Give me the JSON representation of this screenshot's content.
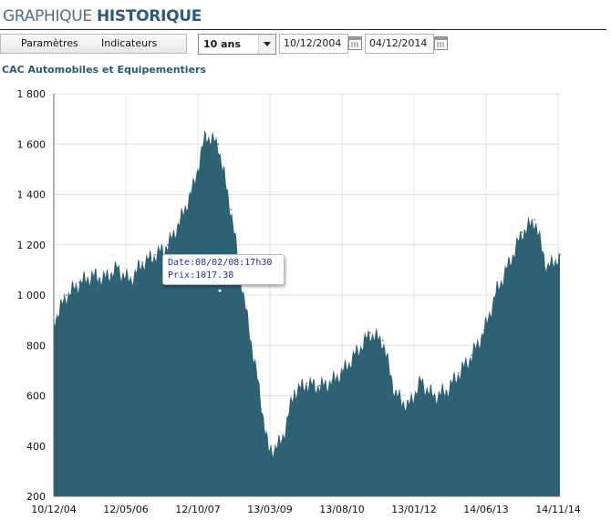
{
  "header": {
    "title_part1": "GRAPHIQUE",
    "title_part2": "HISTORIQUE"
  },
  "toolbar": {
    "params_label": "Paramètres",
    "indicators_label": "Indicateurs",
    "period_value": "10 ans",
    "date_from": "10/12/2004",
    "date_to": "04/12/2014"
  },
  "chart_title": "CAC Automobiles et Equipementiers",
  "tooltip": {
    "date": "Date:08/02/08:17h30",
    "price": "Prix:1017.38"
  },
  "colors": {
    "area": "#2e6173",
    "grid": "#e0e0e0",
    "title": "#2a5b74",
    "tooltip_text": "#2a2aa8"
  },
  "chart_data": {
    "type": "area",
    "title": "CAC Automobiles et Equipementiers",
    "ylim": [
      200,
      1800
    ],
    "yticks": [
      200,
      400,
      600,
      800,
      1000,
      1200,
      1400,
      1600,
      1800
    ],
    "ytick_labels": [
      "200",
      "400",
      "600",
      "800",
      "1 000",
      "1 200",
      "1 400",
      "1 600",
      "1 800"
    ],
    "xtick_labels": [
      "10/12/04",
      "12/05/06",
      "12/10/07",
      "13/03/09",
      "13/08/10",
      "13/01/12",
      "14/06/13",
      "14/11/14"
    ],
    "x": [
      "10/12/04",
      "03/05",
      "06/05",
      "09/05",
      "12/05",
      "03/06",
      "06/06",
      "09/06",
      "12/06",
      "03/07",
      "06/07",
      "09/07",
      "12/07",
      "03/08",
      "06/08",
      "09/08",
      "12/08",
      "03/09",
      "06/09",
      "09/09",
      "12/09",
      "03/10",
      "06/10",
      "09/10",
      "12/10",
      "03/11",
      "06/11",
      "09/11",
      "12/11",
      "03/12",
      "06/12",
      "09/12",
      "12/12",
      "03/13",
      "06/13",
      "09/13",
      "12/13",
      "03/14",
      "06/14",
      "09/14",
      "12/14"
    ],
    "values": [
      900,
      1000,
      1050,
      1080,
      1070,
      1110,
      1060,
      1130,
      1160,
      1200,
      1300,
      1430,
      1640,
      1600,
      1340,
      1000,
      700,
      380,
      420,
      620,
      650,
      640,
      660,
      710,
      780,
      850,
      820,
      610,
      560,
      660,
      600,
      620,
      690,
      760,
      860,
      1020,
      1130,
      1250,
      1300,
      1110,
      1160
    ],
    "grid": true,
    "legend": "none"
  }
}
